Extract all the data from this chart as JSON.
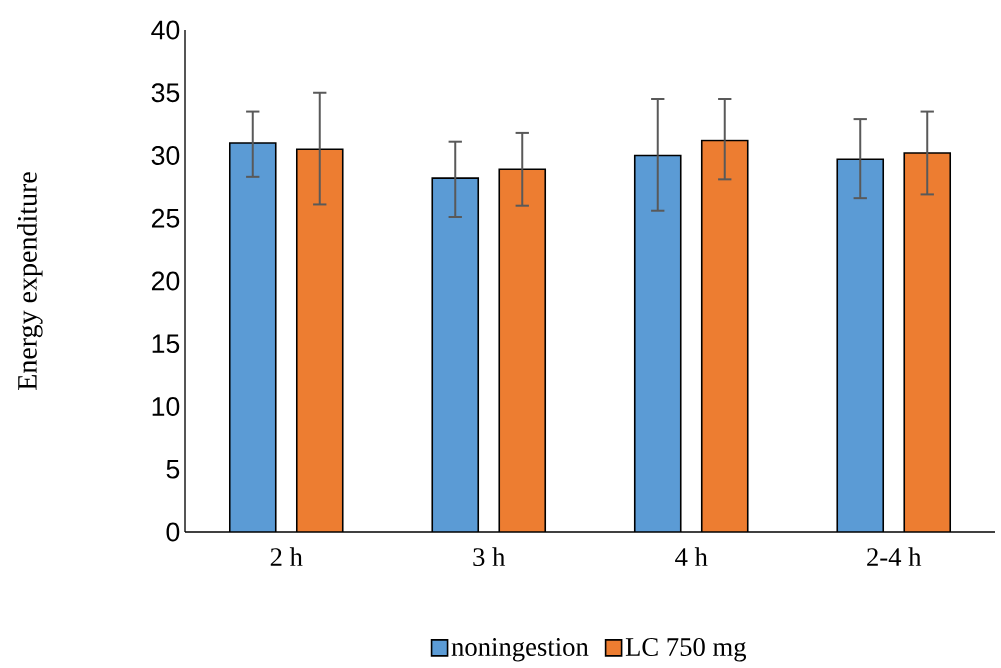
{
  "chart_data": {
    "type": "bar",
    "ylabel": "Energy expenditure",
    "categories": [
      "2 h",
      "3 h",
      "4 h",
      "2-4 h"
    ],
    "series": [
      {
        "name": "noningestion",
        "color": "#5b9bd5",
        "values": [
          31.0,
          28.2,
          30.0,
          29.7
        ],
        "errors": [
          [
            28.3,
            33.5
          ],
          [
            25.1,
            31.1
          ],
          [
            25.6,
            34.5
          ],
          [
            26.6,
            32.9
          ]
        ]
      },
      {
        "name": "LC 750 mg",
        "color": "#ed7d31",
        "values": [
          30.5,
          28.9,
          31.2,
          30.2
        ],
        "errors": [
          [
            26.1,
            35.0
          ],
          [
            26.0,
            31.8
          ],
          [
            28.1,
            34.5
          ],
          [
            26.9,
            33.5
          ]
        ]
      }
    ],
    "ylim": [
      0,
      40
    ],
    "yticks": [
      0,
      5,
      10,
      15,
      20,
      25,
      30,
      35,
      40
    ],
    "grid": false,
    "legend": "bottom"
  }
}
